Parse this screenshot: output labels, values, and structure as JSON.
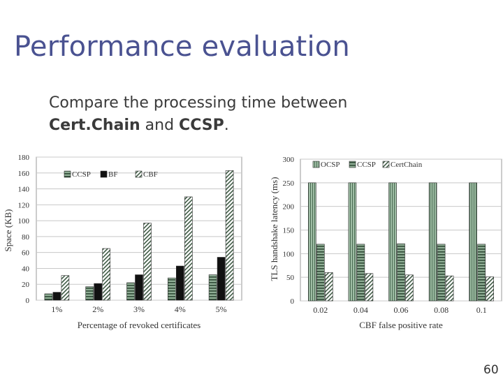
{
  "slide": {
    "title": "Performance evaluation",
    "subtitle_line1": "Compare the processing time between",
    "subtitle_bold1": "Cert.Chain",
    "subtitle_mid": " and ",
    "subtitle_bold2": "CCSP",
    "subtitle_end": ".",
    "page_number": "60"
  },
  "colors": {
    "title": "#4a5291",
    "ocsp": "#8fae95",
    "ccsp": "#8fae95",
    "bf": "#111111",
    "cbf": "#ffffff"
  },
  "chart_data": [
    {
      "type": "bar",
      "title": "",
      "xlabel": "Percentage of revoked certificates",
      "ylabel": "Space (KB)",
      "categories": [
        "1%",
        "2%",
        "3%",
        "4%",
        "5%"
      ],
      "ylim": [
        0,
        180
      ],
      "yticks": [
        0,
        20,
        40,
        60,
        80,
        100,
        120,
        140,
        160,
        180
      ],
      "grid": true,
      "legend_position": "top-left",
      "series": [
        {
          "name": "CCSP",
          "pattern": "hstripe",
          "values": [
            8,
            17,
            22,
            28,
            32
          ]
        },
        {
          "name": "BF",
          "pattern": "black",
          "values": [
            10,
            21,
            32,
            43,
            54
          ]
        },
        {
          "name": "CBF",
          "pattern": "diag",
          "values": [
            31,
            65,
            97,
            130,
            163
          ]
        }
      ]
    },
    {
      "type": "bar",
      "title": "",
      "xlabel": "CBF false positive rate",
      "ylabel": "TLS handshake latency (ms)",
      "categories": [
        "0.02",
        "0.04",
        "0.06",
        "0.08",
        "0.1"
      ],
      "ylim": [
        0,
        300
      ],
      "yticks": [
        0,
        50,
        100,
        150,
        200,
        250,
        300
      ],
      "grid": true,
      "legend_position": "top",
      "series": [
        {
          "name": "OCSP",
          "pattern": "vstripe",
          "values": [
            250,
            250,
            250,
            250,
            250
          ]
        },
        {
          "name": "CCSP",
          "pattern": "hstripe",
          "values": [
            120,
            120,
            121,
            120,
            120
          ]
        },
        {
          "name": "CertChain",
          "pattern": "diag",
          "values": [
            60,
            58,
            55,
            53,
            51
          ]
        }
      ]
    }
  ]
}
